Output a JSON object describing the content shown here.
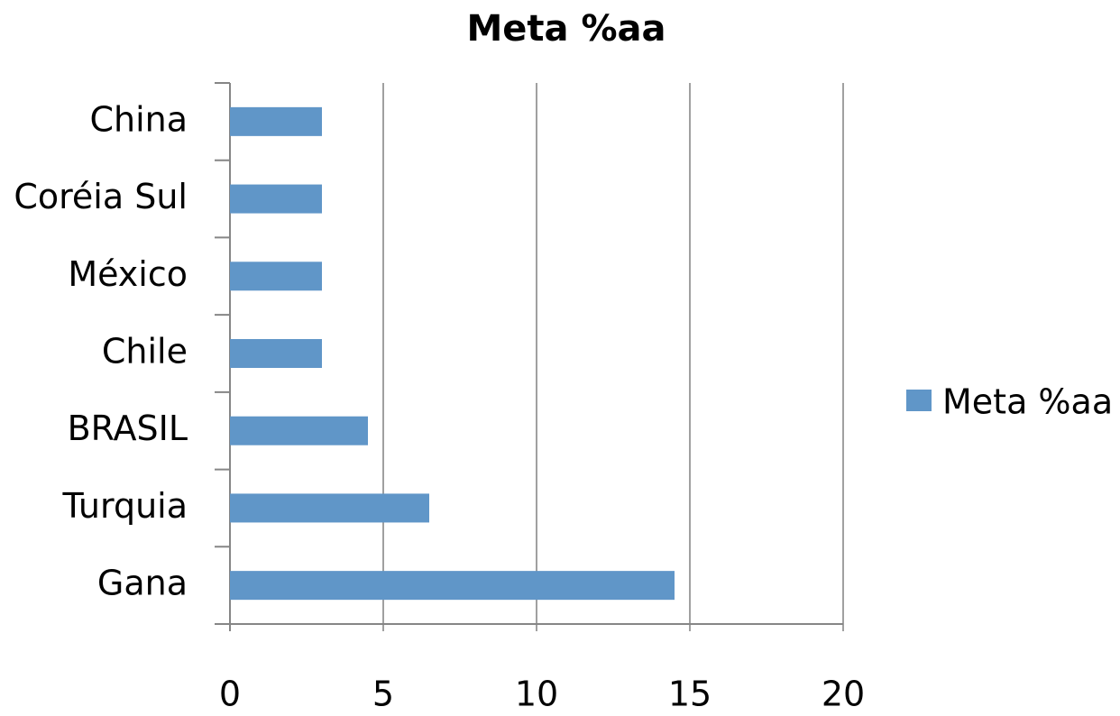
{
  "chart_data": {
    "type": "hbar",
    "title": "Meta %aa",
    "categories": [
      "China",
      "Coréia Sul",
      "México",
      "Chile",
      "BRASIL",
      "Turquia",
      "Gana"
    ],
    "series": [
      {
        "name": "Meta %aa",
        "color": "#6096c8",
        "values": [
          3,
          3,
          3,
          3,
          4.5,
          6.5,
          14.5
        ]
      }
    ],
    "xlim": [
      0,
      20
    ],
    "xticks": [
      0,
      5,
      10,
      15,
      20
    ],
    "grid": true,
    "legend": "right"
  }
}
